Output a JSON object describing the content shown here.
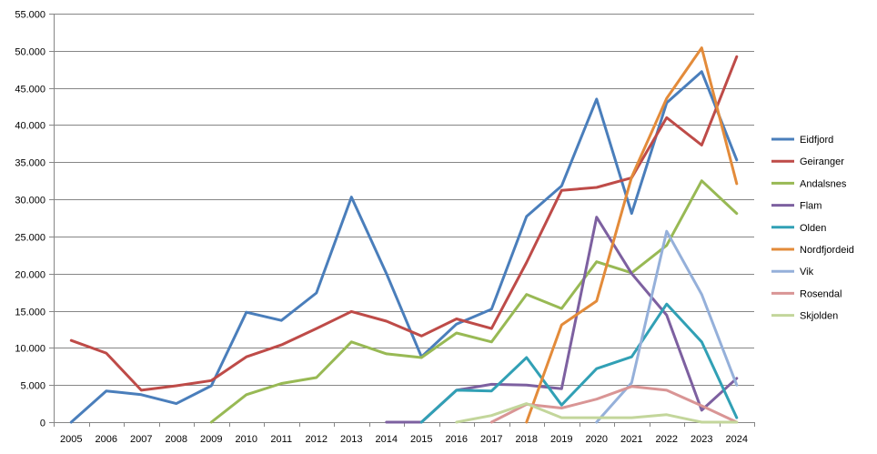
{
  "chart_data": {
    "type": "line",
    "title": "",
    "xlabel": "",
    "ylabel": "",
    "categories": [
      "2005",
      "2006",
      "2007",
      "2008",
      "2009",
      "2010",
      "2011",
      "2012",
      "2013",
      "2014",
      "2015",
      "2016",
      "2017",
      "2018",
      "2019",
      "2020",
      "2021",
      "2022",
      "2023",
      "2024"
    ],
    "ylim": [
      0,
      55000
    ],
    "yticks": [
      0,
      5000,
      10000,
      15000,
      20000,
      25000,
      30000,
      35000,
      40000,
      45000,
      50000,
      55000
    ],
    "ytick_labels": [
      "0",
      "5.000",
      "10.000",
      "15.000",
      "20.000",
      "25.000",
      "30.000",
      "35.000",
      "40.000",
      "45.000",
      "50.000",
      "55.000"
    ],
    "grid": "horizontal",
    "legend_position": "right",
    "series": [
      {
        "name": "Eidfjord",
        "color": "#4A7EBB",
        "values": [
          0,
          4200,
          3700,
          2500,
          4900,
          14800,
          13700,
          17400,
          30300,
          20000,
          8800,
          13200,
          15200,
          27700,
          31800,
          43500,
          28100,
          43000,
          47200,
          35300
        ]
      },
      {
        "name": "Geiranger",
        "color": "#BE4B48",
        "values": [
          11000,
          9300,
          4300,
          4900,
          5600,
          8800,
          10400,
          12600,
          14900,
          13600,
          11600,
          13900,
          12600,
          21500,
          31200,
          31600,
          32900,
          41000,
          37300,
          49200
        ]
      },
      {
        "name": "Andalsnes",
        "color": "#98B954",
        "values": [
          null,
          null,
          null,
          null,
          0,
          3700,
          5200,
          6000,
          10800,
          9200,
          8700,
          12000,
          10800,
          17200,
          15300,
          21600,
          20100,
          23800,
          32500,
          28100
        ]
      },
      {
        "name": "Flam",
        "color": "#7D60A0",
        "values": [
          null,
          null,
          null,
          null,
          null,
          null,
          null,
          null,
          null,
          0,
          0,
          4300,
          5100,
          5000,
          4500,
          27600,
          20000,
          14400,
          1600,
          5900
        ]
      },
      {
        "name": "Olden",
        "color": "#31A0B5",
        "values": [
          null,
          null,
          null,
          null,
          null,
          null,
          null,
          null,
          null,
          null,
          0,
          4300,
          4200,
          8700,
          2300,
          7200,
          8800,
          15900,
          10800,
          600
        ]
      },
      {
        "name": "Nordfjordeid",
        "color": "#E38B3A",
        "values": [
          null,
          null,
          null,
          null,
          null,
          null,
          null,
          null,
          null,
          null,
          null,
          null,
          null,
          0,
          13100,
          16300,
          33000,
          43600,
          50400,
          32100
        ]
      },
      {
        "name": "Vik",
        "color": "#95B0DA",
        "values": [
          null,
          null,
          null,
          null,
          null,
          null,
          null,
          null,
          null,
          null,
          null,
          null,
          null,
          null,
          null,
          0,
          5300,
          25700,
          17200,
          5000
        ]
      },
      {
        "name": "Rosendal",
        "color": "#D99595",
        "values": [
          null,
          null,
          null,
          null,
          null,
          null,
          null,
          null,
          null,
          null,
          null,
          null,
          0,
          2400,
          1900,
          3100,
          4800,
          4300,
          2200,
          0
        ]
      },
      {
        "name": "Skjolden",
        "color": "#C3D69B",
        "values": [
          null,
          null,
          null,
          null,
          null,
          null,
          null,
          null,
          null,
          null,
          null,
          0,
          900,
          2500,
          600,
          600,
          600,
          1000,
          0,
          0
        ]
      }
    ]
  }
}
